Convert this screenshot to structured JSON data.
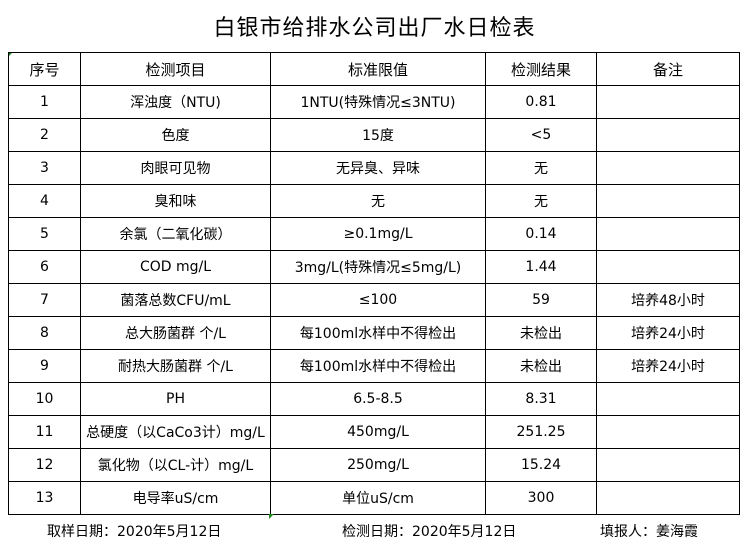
{
  "title": "白银市给排水公司出厂水日检表",
  "headers": [
    "序号",
    "检测项目",
    "标准限值",
    "检测结果",
    "备注"
  ],
  "rows": [
    [
      "1",
      "浑浊度（NTU)",
      "1NTU(特殊情况≤3NTU)",
      "0.81",
      ""
    ],
    [
      "2",
      "色度",
      "15度",
      "<5",
      ""
    ],
    [
      "3",
      "肉眼可见物",
      "无异臭、异味",
      "无",
      ""
    ],
    [
      "4",
      "臭和味",
      "无",
      "无",
      ""
    ],
    [
      "5",
      "余氯（二氧化碳）",
      "≥0.1mg/L",
      "0.14",
      ""
    ],
    [
      "6",
      "COD          mg/L",
      "3mg/L(特殊情况≤5mg/L)",
      "1.44",
      ""
    ],
    [
      "7",
      "菌落总数CFU/mL",
      "≤100",
      "59",
      "培养48小时"
    ],
    [
      "8",
      "总大肠菌群 个/L",
      "每100ml水样中不得检出",
      "未检出",
      "培养24小时"
    ],
    [
      "9",
      "耐热大肠菌群 个/L",
      "每100ml水样中不得检出",
      "未检出",
      "培养24小时"
    ],
    [
      "10",
      "PH",
      "6.5-8.5",
      "8.31",
      ""
    ],
    [
      "11",
      "总硬度（以CaCo3计）mg/L",
      "450mg/L",
      "251.25",
      ""
    ],
    [
      "12",
      "氯化物（以CL-计）mg/L",
      "250mg/L",
      "15.24",
      ""
    ],
    [
      "13",
      "电导率uS/cm",
      "单位uS/cm",
      "300",
      ""
    ]
  ],
  "footer": {
    "sample_date": "取样日期：2020年5月12日",
    "test_date": "检测日期：2020年5月12日",
    "reporter": "填报人：姜海霞"
  }
}
